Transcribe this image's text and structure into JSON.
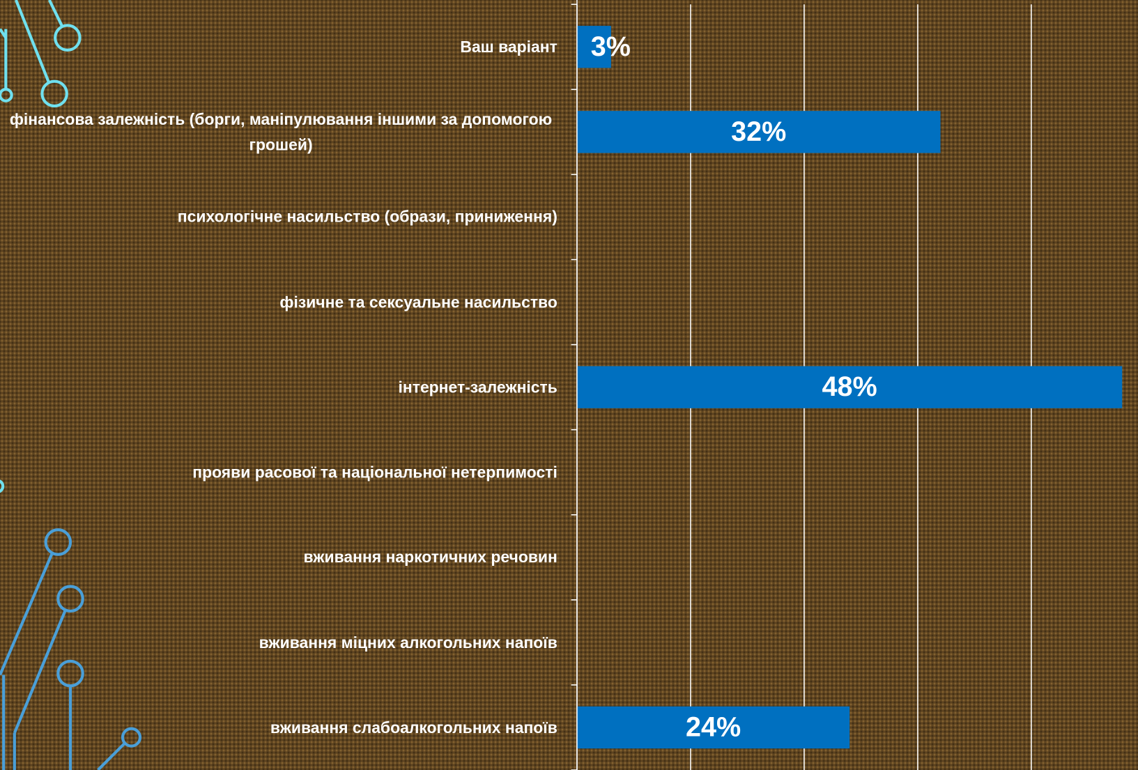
{
  "chart_data": {
    "type": "hbar",
    "categories": [
      "Ваш варіант",
      "фінансова залежність (борги, маніпулювання іншими за допомогою грошей)",
      "психологічне насильство (образи, приниження)",
      "фізичне та сексуальне насильство",
      "інтернет-залежність",
      "прояви расової та національної нетерпимості",
      "вживання наркотичних речовин",
      "вживання міцних алкогольних напоїв",
      "вживання слабоалкогольних напоїв"
    ],
    "values": [
      3,
      32,
      null,
      null,
      48,
      null,
      null,
      null,
      24
    ],
    "value_labels": [
      "3%",
      "32%",
      null,
      null,
      "48%",
      null,
      null,
      null,
      "24%"
    ],
    "color": "#0070c0",
    "xlim": [
      0,
      50
    ],
    "xticks": [
      0,
      10,
      20,
      30,
      40
    ],
    "grid": true
  }
}
